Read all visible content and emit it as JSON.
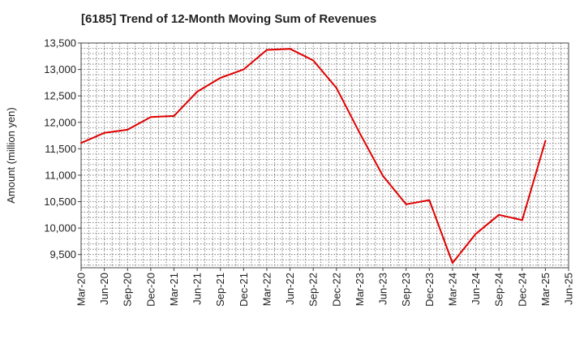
{
  "chart_data": {
    "type": "line",
    "title": "[6185]  Trend of 12-Month Moving Sum of Revenues",
    "xlabel": "",
    "ylabel": "Amount (million yen)",
    "ylim": [
      9250,
      13500
    ],
    "yticks": [
      "9,500",
      "10,000",
      "10,500",
      "11,000",
      "11,500",
      "12,000",
      "12,500",
      "13,000",
      "13,500"
    ],
    "ytick_values": [
      9500,
      10000,
      10500,
      11000,
      11500,
      12000,
      12500,
      13000,
      13500
    ],
    "categories": [
      "Mar-20",
      "Jun-20",
      "Sep-20",
      "Dec-20",
      "Mar-21",
      "Jun-21",
      "Sep-21",
      "Dec-21",
      "Mar-22",
      "Jun-22",
      "Sep-22",
      "Dec-22",
      "Mar-23",
      "Jun-23",
      "Sep-23",
      "Dec-23",
      "Mar-24",
      "Jun-24",
      "Sep-24",
      "Dec-24",
      "Mar-25",
      "Jun-25"
    ],
    "grid": true,
    "series": [
      {
        "color": "#e00000",
        "values": [
          11610,
          11800,
          11860,
          12100,
          12120,
          12580,
          12840,
          13000,
          13370,
          13390,
          13170,
          12650,
          11800,
          10990,
          10450,
          10530,
          9340,
          9890,
          10250,
          10150,
          11650,
          null
        ]
      }
    ]
  }
}
